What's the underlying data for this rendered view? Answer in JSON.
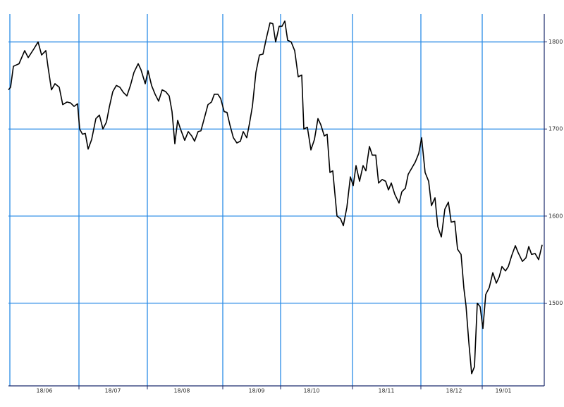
{
  "chart_data": {
    "type": "line",
    "x": [
      0,
      3,
      7,
      15,
      23,
      28,
      36,
      42,
      47,
      53,
      56,
      61,
      66,
      72,
      77,
      83,
      88,
      93,
      98,
      101,
      105,
      109,
      113,
      118,
      124,
      129,
      134,
      139,
      143,
      148,
      153,
      158,
      163,
      168,
      173,
      178,
      184,
      188,
      194,
      198,
      203,
      208,
      213,
      218,
      223,
      228,
      232,
      236,
      240,
      244,
      250,
      255,
      260,
      264,
      269,
      273,
      277,
      283,
      288,
      292,
      297,
      301,
      306,
      310,
      314,
      319,
      324,
      329,
      333,
      338,
      342,
      346,
      351,
      356,
      361,
      366,
      371,
      375,
      379,
      384,
      388,
      392,
      396,
      401,
      406,
      411,
      416,
      419,
      424,
      429,
      434,
      439,
      443,
      448,
      452,
      456,
      460,
      466,
      471,
      475,
      480,
      485,
      489,
      493,
      498,
      503,
      507,
      512,
      516,
      521,
      525,
      530,
      535,
      539,
      543,
      548,
      554,
      558,
      563,
      567,
      572,
      577,
      582,
      586,
      591,
      596,
      600,
      605,
      609,
      614,
      619,
      624,
      628,
      633,
      637,
      642,
      646,
      649,
      653,
      657,
      661,
      665,
      669,
      673,
      677,
      682,
      687,
      692,
      696,
      700,
      705,
      709,
      714,
      719,
      723,
      729,
      734,
      738,
      742,
      747,
      752,
      757
    ],
    "values": [
      1745,
      1748,
      1772,
      1775,
      1790,
      1782,
      1792,
      1800,
      1785,
      1790,
      1772,
      1745,
      1752,
      1748,
      1728,
      1731,
      1730,
      1726,
      1729,
      1700,
      1694,
      1695,
      1677,
      1688,
      1712,
      1716,
      1700,
      1708,
      1725,
      1743,
      1750,
      1748,
      1742,
      1738,
      1750,
      1765,
      1775,
      1768,
      1752,
      1767,
      1750,
      1740,
      1732,
      1745,
      1743,
      1738,
      1720,
      1683,
      1710,
      1700,
      1687,
      1697,
      1692,
      1686,
      1697,
      1698,
      1710,
      1728,
      1731,
      1740,
      1740,
      1735,
      1720,
      1719,
      1705,
      1690,
      1684,
      1686,
      1697,
      1690,
      1707,
      1726,
      1765,
      1785,
      1786,
      1805,
      1822,
      1821,
      1800,
      1818,
      1818,
      1824,
      1802,
      1800,
      1790,
      1760,
      1762,
      1700,
      1702,
      1676,
      1688,
      1712,
      1705,
      1692,
      1694,
      1650,
      1652,
      1600,
      1597,
      1589,
      1610,
      1645,
      1635,
      1658,
      1640,
      1658,
      1652,
      1680,
      1670,
      1670,
      1638,
      1642,
      1640,
      1630,
      1638,
      1625,
      1615,
      1628,
      1632,
      1648,
      1655,
      1662,
      1672,
      1690,
      1650,
      1640,
      1612,
      1621,
      1588,
      1576,
      1608,
      1616,
      1593,
      1594,
      1562,
      1556,
      1517,
      1497,
      1455,
      1419,
      1427,
      1500,
      1496,
      1471,
      1510,
      1518,
      1535,
      1523,
      1530,
      1542,
      1537,
      1542,
      1555,
      1566,
      1558,
      1548,
      1552,
      1565,
      1556,
      1557,
      1550,
      1567
    ],
    "color": "#000000",
    "xlim": [
      0,
      760
    ],
    "xticks": [
      {
        "value": 51,
        "label": "18/06"
      },
      {
        "value": 148,
        "label": "18/07"
      },
      {
        "value": 246,
        "label": "18/08"
      },
      {
        "value": 352,
        "label": "18/09"
      },
      {
        "value": 430,
        "label": "18/10"
      },
      {
        "value": 536,
        "label": "18/11"
      },
      {
        "value": 632,
        "label": "18/12"
      },
      {
        "value": 702,
        "label": "19/01"
      }
    ],
    "xgrid": [
      100,
      197,
      304,
      386,
      488,
      585,
      672
    ],
    "ylim": [
      1405,
      1832
    ],
    "yticks": [
      1500,
      1600,
      1700,
      1800
    ],
    "grid": true,
    "grid_color": "#2a8be6",
    "y_axis_side": "right"
  }
}
